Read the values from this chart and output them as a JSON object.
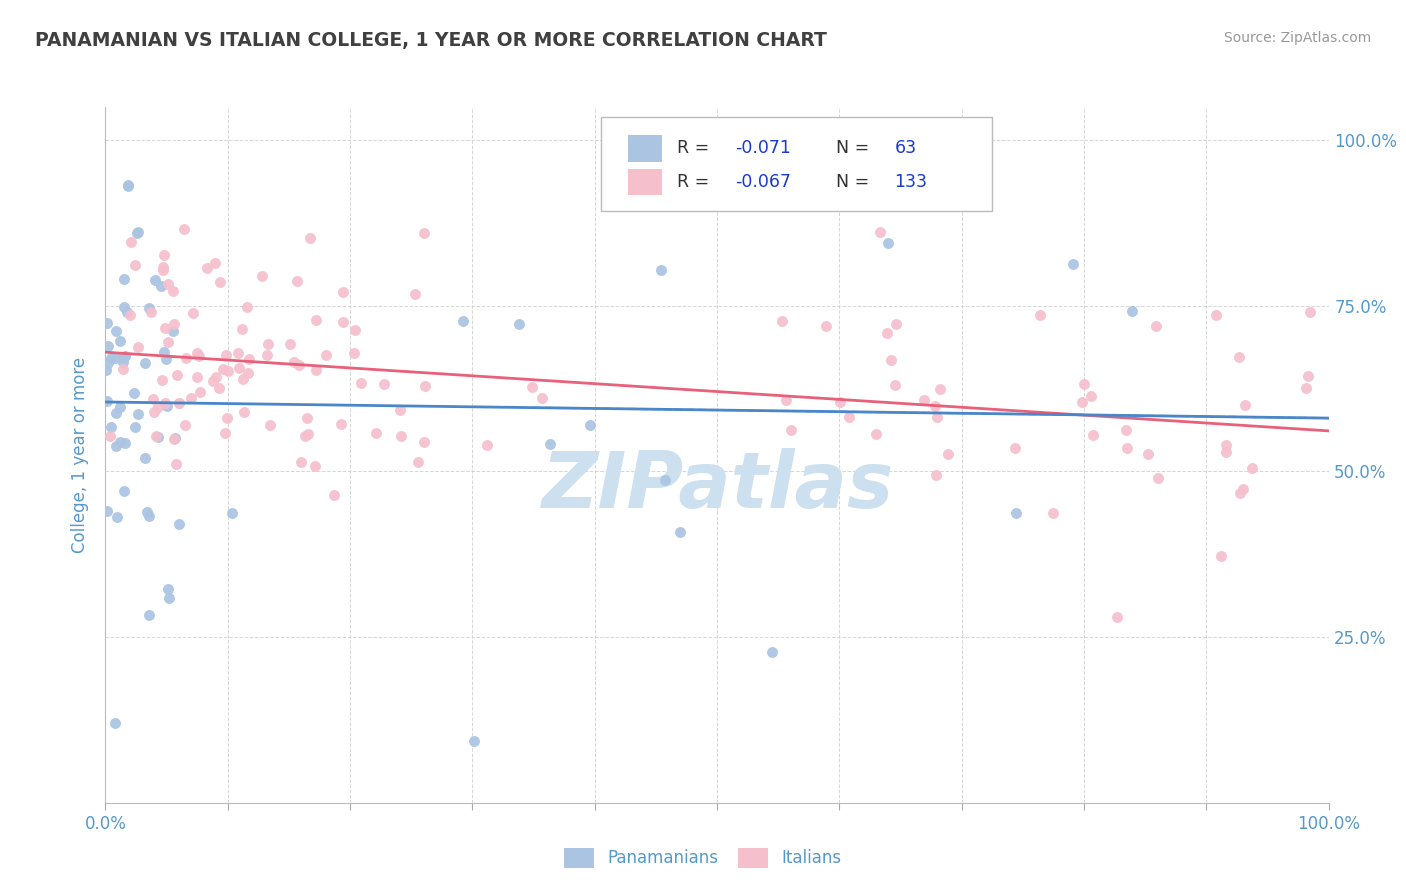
{
  "title": "PANAMANIAN VS ITALIAN COLLEGE, 1 YEAR OR MORE CORRELATION CHART",
  "source_text": "Source: ZipAtlas.com",
  "ylabel": "College, 1 year or more",
  "xlim": [
    0.0,
    1.0
  ],
  "ylim": [
    0.0,
    1.05
  ],
  "color_blue": "#aac4e2",
  "color_pink": "#f5bfcc",
  "line_blue": "#4a86c8",
  "line_pink": "#e8607a",
  "line_dash_color": "#90b8de",
  "axis_label_color": "#5599cc",
  "title_color": "#404040",
  "source_color": "#999999",
  "legend_r_color": "#1a3acc",
  "watermark_color": "#cce0f0",
  "grid_color": "#cccccc",
  "pan_n": 63,
  "ita_n": 133
}
